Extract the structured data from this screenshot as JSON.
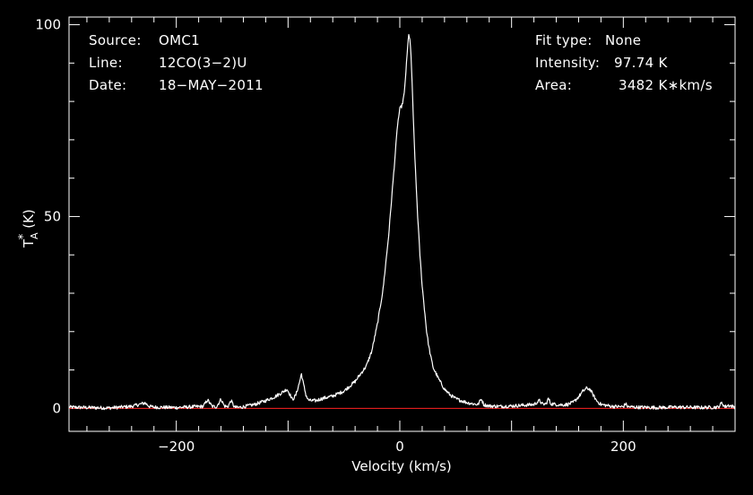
{
  "chart_data": {
    "type": "line",
    "xlabel": "Velocity (km/s)",
    "ylabel_main": "T",
    "ylabel_sup": "*",
    "ylabel_sub": "A",
    "ylabel_unit": "(K)",
    "xlim": [
      -296,
      300
    ],
    "ylim": [
      -6,
      102
    ],
    "x_ticks": [
      -200,
      0,
      200
    ],
    "x_tick_labels": [
      "−200",
      "0",
      "200"
    ],
    "y_ticks": [
      0,
      50,
      100
    ],
    "y_tick_labels": [
      "0",
      "50",
      "100"
    ],
    "baseline": 0,
    "colors": {
      "line": "#ffffff",
      "baseline": "#ff2222",
      "axes": "#ffffff",
      "background": "#000000"
    },
    "info_left": [
      {
        "key": "Source:",
        "value": "OMC1"
      },
      {
        "key": "Line:",
        "value": "12CO(3−2)U"
      },
      {
        "key": "Date:",
        "value": "18−MAY−2011"
      }
    ],
    "info_right": [
      {
        "key": "Fit type:",
        "value": "None"
      },
      {
        "key": "Intensity:",
        "value": "97.74 K"
      },
      {
        "key": "Area:",
        "value": "3482 K∗km/s"
      }
    ],
    "series": [
      {
        "x": [
          -296,
          -280,
          -260,
          -240,
          -228,
          -224,
          -220,
          -200,
          -185,
          -176,
          -172,
          -168,
          -164,
          -160,
          -157,
          -154,
          -151,
          -148,
          -145,
          -140,
          -130,
          -120,
          -112,
          -106,
          -101,
          -99,
          -96,
          -93,
          -90,
          -88,
          -86,
          -84,
          -82,
          -80,
          -75,
          -70,
          -60,
          -50,
          -40,
          -30,
          -25,
          -20,
          -15,
          -10,
          -5,
          -2,
          0,
          2,
          4,
          5,
          6,
          7,
          8,
          9,
          10,
          11,
          12,
          14,
          16,
          18,
          20,
          22,
          24,
          26,
          28,
          30,
          35,
          40,
          45,
          50,
          55,
          60,
          65,
          70,
          73,
          75,
          77,
          80,
          90,
          100,
          110,
          120,
          125,
          128,
          131,
          133,
          135,
          140,
          145,
          150,
          155,
          160,
          164,
          167,
          170,
          173,
          176,
          180,
          190,
          200,
          202,
          204,
          210,
          230,
          250,
          270,
          285,
          288,
          291,
          294,
          300
        ],
        "y": [
          0.3,
          0.2,
          0.1,
          0.5,
          1.4,
          0.5,
          0.3,
          0.2,
          0.4,
          0.5,
          2.2,
          0.5,
          0.4,
          2.4,
          0.6,
          0.4,
          2.0,
          0.3,
          0.2,
          0.4,
          1.0,
          2.0,
          3.0,
          4.0,
          5.0,
          4.0,
          2.2,
          3.5,
          6.5,
          9.0,
          6.0,
          3.5,
          2.2,
          2.0,
          2.0,
          2.5,
          3.2,
          4.5,
          7.0,
          11.0,
          15.0,
          22.0,
          31.0,
          45.0,
          63.0,
          74.0,
          78.0,
          79.0,
          82.0,
          86.0,
          90.0,
          94.0,
          97.7,
          96.0,
          92.0,
          85.0,
          76.0,
          62.0,
          50.0,
          40.0,
          32.0,
          26.0,
          20.0,
          16.0,
          13.0,
          10.5,
          7.5,
          5.0,
          3.5,
          2.5,
          2.0,
          1.5,
          1.2,
          1.0,
          2.5,
          1.0,
          0.8,
          0.6,
          0.5,
          0.6,
          0.8,
          1.0,
          2.0,
          1.0,
          1.2,
          2.6,
          1.2,
          1.0,
          0.9,
          1.0,
          1.5,
          3.0,
          4.5,
          5.2,
          5.0,
          3.5,
          2.0,
          1.0,
          0.5,
          0.4,
          1.2,
          0.4,
          0.3,
          0.2,
          0.3,
          0.2,
          0.3,
          1.4,
          0.4,
          0.8,
          0.3
        ]
      }
    ]
  }
}
